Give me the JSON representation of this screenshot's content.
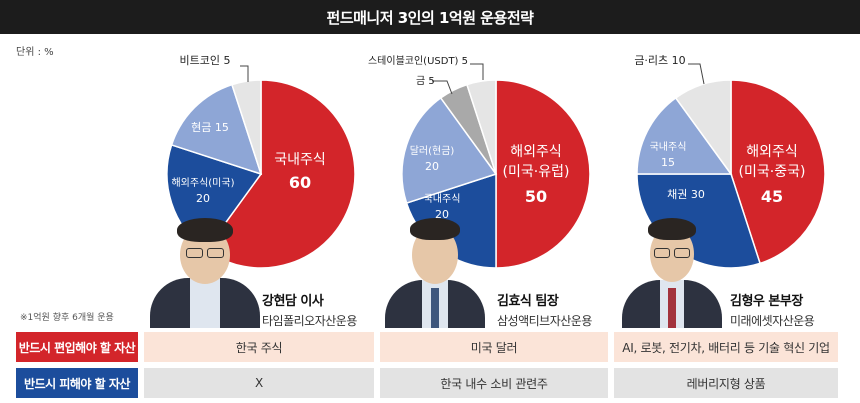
{
  "title": "펀드매니저 3인의 1억원 운용전략",
  "unit": "단위 : %",
  "footnote": "※1억원 향후 6개월 운용",
  "colors": {
    "red": "#d3252a",
    "navy": "#1c4d9c",
    "light_blue": "#8ea6d6",
    "gray": "#a9a9a9",
    "light_gray": "#e5e5e5",
    "should_include_bg": "#fbe4d8",
    "should_avoid_bg": "#e3e3e3"
  },
  "chart_data": [
    {
      "type": "pie",
      "manager": "강현담 이사",
      "slices": [
        {
          "label": "국내주식",
          "value": 60,
          "color": "#d3252a"
        },
        {
          "label": "해외주식(미국)",
          "value": 20,
          "color": "#1c4d9c"
        },
        {
          "label": "현금",
          "value": 15,
          "color": "#8ea6d6"
        },
        {
          "label": "비트코인",
          "value": 5,
          "color": "#e5e5e5"
        }
      ]
    },
    {
      "type": "pie",
      "manager": "김효식 팀장",
      "slices": [
        {
          "label": "해외주식(미국·유럽)",
          "value": 50,
          "color": "#d3252a"
        },
        {
          "label": "국내주식",
          "value": 20,
          "color": "#1c4d9c"
        },
        {
          "label": "달러(현금)",
          "value": 20,
          "color": "#8ea6d6"
        },
        {
          "label": "금",
          "value": 5,
          "color": "#a9a9a9"
        },
        {
          "label": "스테이블코인(USDT)",
          "value": 5,
          "color": "#e5e5e5"
        }
      ]
    },
    {
      "type": "pie",
      "manager": "김형우 본부장",
      "slices": [
        {
          "label": "해외주식(미국·중국)",
          "value": 45,
          "color": "#d3252a"
        },
        {
          "label": "채권",
          "value": 30,
          "color": "#1c4d9c"
        },
        {
          "label": "국내주식",
          "value": 15,
          "color": "#8ea6d6"
        },
        {
          "label": "금·리츠",
          "value": 10,
          "color": "#e5e5e5"
        }
      ]
    }
  ],
  "pie_text": [
    [
      {
        "name": "국내주식",
        "value": "60"
      },
      {
        "name": "해외주식(미국)",
        "value": "20"
      },
      {
        "name": "현금",
        "value": "15"
      },
      {
        "name": "비트코인",
        "value": "5"
      }
    ],
    [
      {
        "name": "해외주식",
        "name2": "(미국·유럽)",
        "value": "50"
      },
      {
        "name": "국내주식",
        "value": "20"
      },
      {
        "name": "달러(현금)",
        "value": "20"
      },
      {
        "name": "금",
        "value": "5"
      },
      {
        "name": "스테이블코인(USDT)",
        "value": "5"
      }
    ],
    [
      {
        "name": "해외주식",
        "name2": "(미국·중국)",
        "value": "45"
      },
      {
        "name": "채권",
        "value": "30"
      },
      {
        "name": "국내주식",
        "value": "15"
      },
      {
        "name": "금·리츠",
        "value": "10"
      }
    ]
  ],
  "managers": [
    {
      "name": "강현담 이사",
      "firm": "타임폴리오자산운용"
    },
    {
      "name": "김효식 팀장",
      "firm": "삼성액티브자산운용"
    },
    {
      "name": "김형우 본부장",
      "firm": "미래에셋자산운용"
    }
  ],
  "rows": [
    {
      "label": "반드시 편입해야 할 자산",
      "cells": [
        "한국 주식",
        "미국 달러",
        "AI, 로봇, 전기차, 배터리 등 기술 혁신 기업"
      ]
    },
    {
      "label": "반드시 피해야 할 자산",
      "cells": [
        "X",
        "한국 내수 소비 관련주",
        "레버리지형 상품"
      ]
    }
  ]
}
